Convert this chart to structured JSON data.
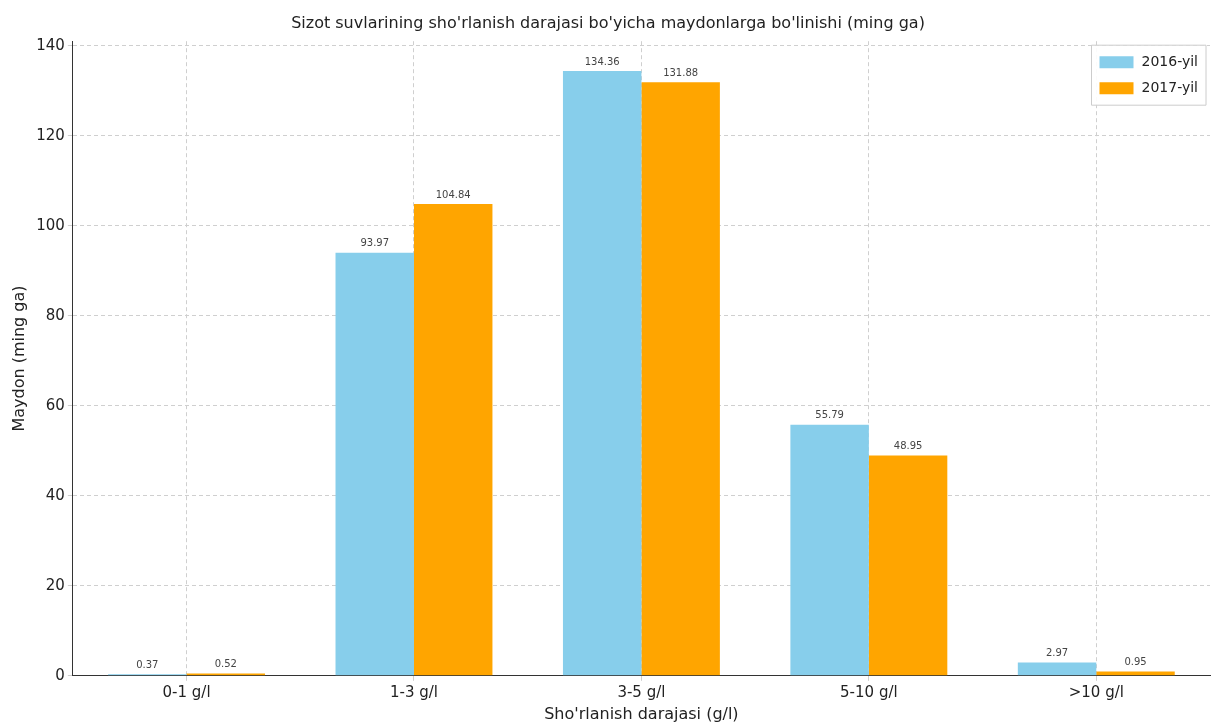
{
  "chart_data": {
    "type": "bar",
    "title": "Sizot suvlarining sho'rlanish darajasi bo'yicha maydonlarga bo'linishi (ming ga)",
    "xlabel": "Sho'rlanish darajasi (g/l)",
    "ylabel": "Maydon (ming ga)",
    "categories": [
      "0-1 g/l",
      "1-3 g/l",
      "3-5 g/l",
      "5-10 g/l",
      ">10 g/l"
    ],
    "series": [
      {
        "name": "2016-yil",
        "color": "#87ceeb",
        "values": [
          0.37,
          93.97,
          134.36,
          55.79,
          2.97
        ]
      },
      {
        "name": "2017-yil",
        "color": "#ffa500",
        "values": [
          0.52,
          104.84,
          131.88,
          48.95,
          0.95
        ]
      }
    ],
    "ylim": [
      0,
      141
    ],
    "yticks": [
      0,
      20,
      40,
      60,
      80,
      100,
      120,
      140
    ],
    "grid": true,
    "legend": "top right",
    "data_labels": true
  }
}
